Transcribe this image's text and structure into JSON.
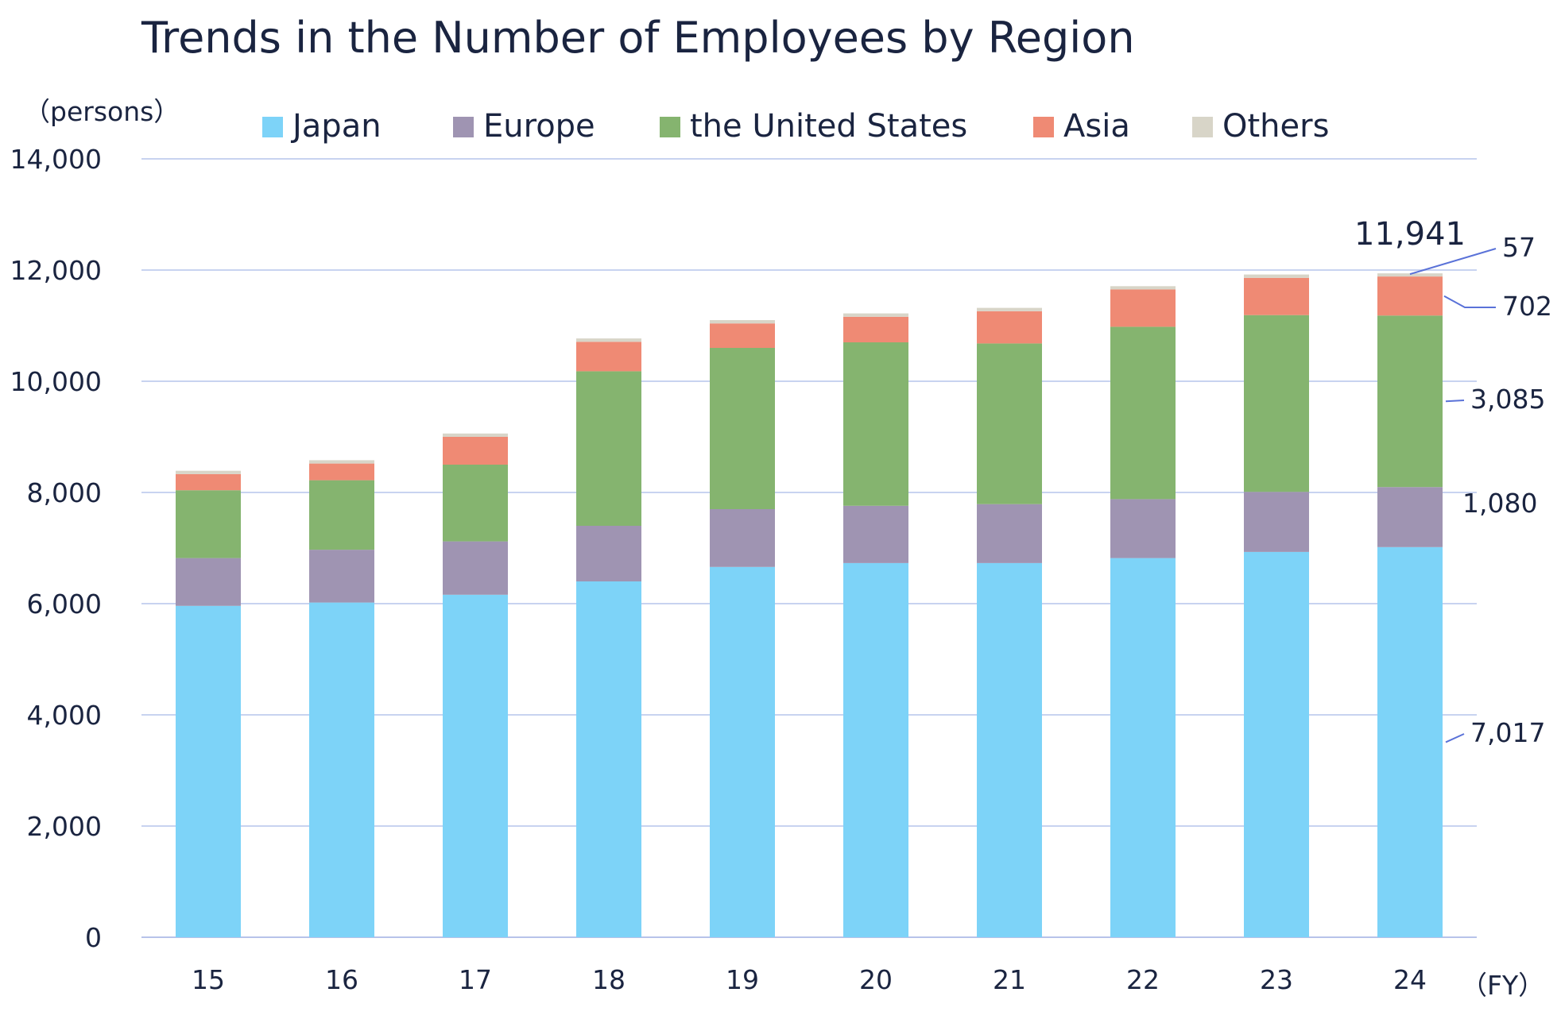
{
  "chart_data": {
    "type": "bar",
    "stacked": true,
    "title": "Trends in the Number of Employees by Region",
    "y_unit_label": "（persons）",
    "x_unit_label": "（FY）",
    "ylim": [
      0,
      14000
    ],
    "y_ticks": [
      0,
      2000,
      4000,
      6000,
      8000,
      10000,
      12000,
      14000
    ],
    "y_tick_labels": [
      "0",
      "2,000",
      "4,000",
      "6,000",
      "8,000",
      "10,000",
      "12,000",
      "14,000"
    ],
    "grid": true,
    "legend_position": "top",
    "categories": [
      "15",
      "16",
      "17",
      "18",
      "19",
      "20",
      "21",
      "22",
      "23",
      "24"
    ],
    "series": [
      {
        "name": "Japan",
        "color": "#7dd3f8",
        "values": [
          5960,
          6020,
          6160,
          6400,
          6660,
          6730,
          6730,
          6820,
          6930,
          7017
        ]
      },
      {
        "name": "Europe",
        "color": "#9f94b2",
        "values": [
          860,
          950,
          960,
          1000,
          1040,
          1030,
          1060,
          1060,
          1080,
          1080
        ]
      },
      {
        "name": "the United States",
        "color": "#85b46f",
        "values": [
          1220,
          1250,
          1380,
          2780,
          2900,
          2940,
          2890,
          3100,
          3180,
          3085
        ]
      },
      {
        "name": "Asia",
        "color": "#ef8a74",
        "values": [
          290,
          300,
          500,
          530,
          440,
          460,
          580,
          670,
          670,
          702
        ]
      },
      {
        "name": "Others",
        "color": "#d8d5c8",
        "values": [
          60,
          60,
          60,
          60,
          60,
          60,
          60,
          60,
          60,
          57
        ]
      }
    ],
    "annotations": {
      "total_last": "11,941",
      "last_bar_labels": [
        "7,017",
        "1,080",
        "3,085",
        "702",
        "57"
      ]
    }
  }
}
